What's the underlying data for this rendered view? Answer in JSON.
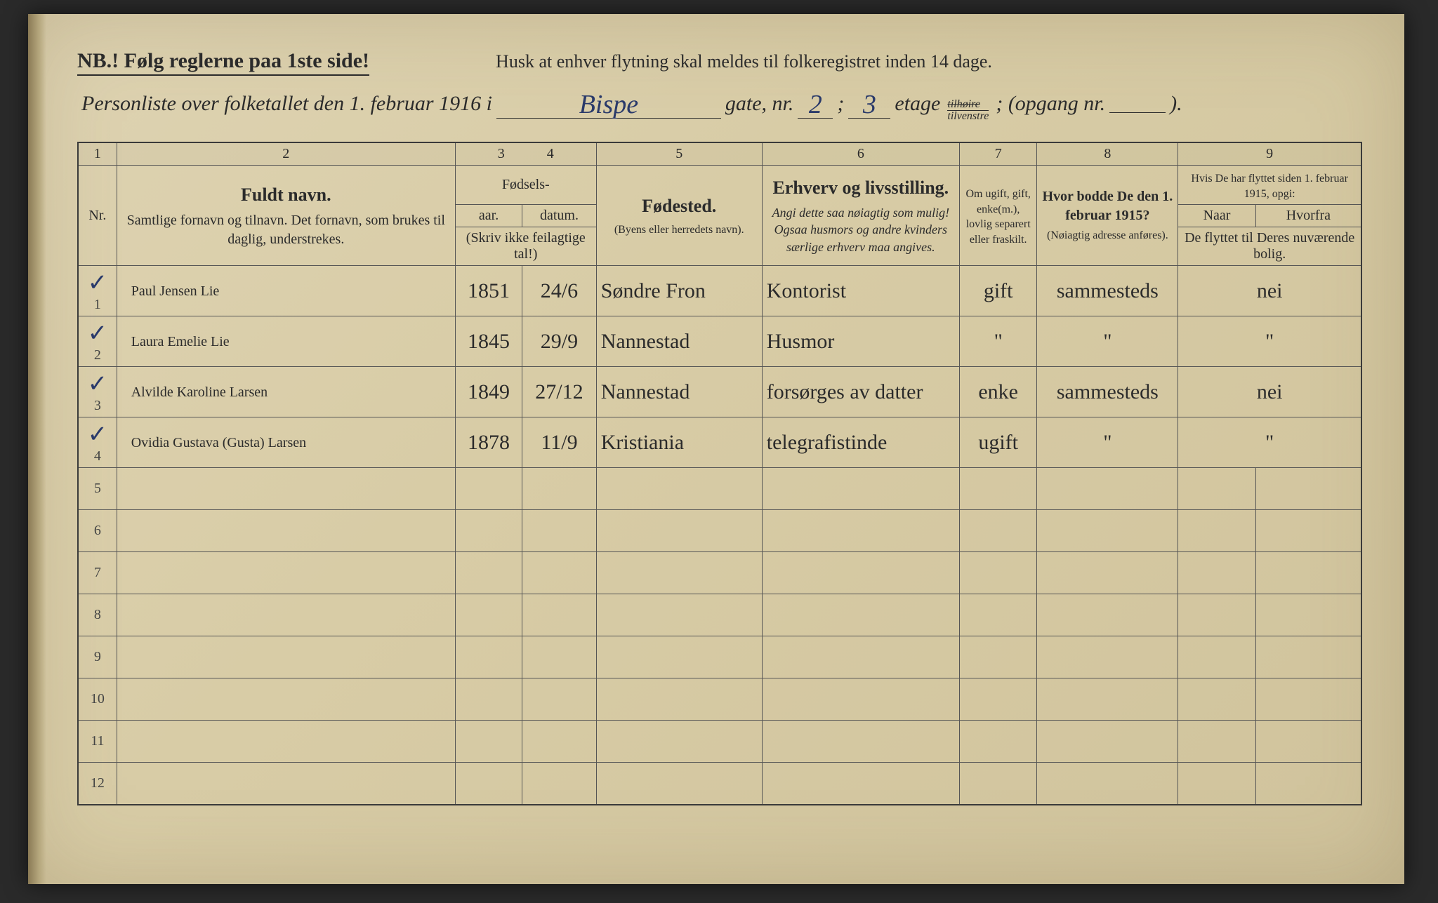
{
  "header": {
    "nb": "NB.! Følg reglerne paa 1ste side!",
    "reminder": "Husk at enhver flytning skal meldes til folkeregistret inden 14 dage.",
    "line2_prefix": "Personliste over folketallet den 1. februar 1916 i",
    "street": "Bispe",
    "gate_lbl": "gate, nr.",
    "gate_nr": "2",
    "semi": ";",
    "etage_nr": "3",
    "etage_lbl": "etage",
    "frac_top": "tilhøire",
    "frac_bot": "tilvenstre",
    "opgang_lbl": "; (opgang nr.",
    "opgang_nr": "",
    "close": ")."
  },
  "colnums": [
    "1",
    "2",
    "3",
    "4",
    "5",
    "6",
    "7",
    "8",
    "9"
  ],
  "headers": {
    "nr": "Nr.",
    "name_big": "Fuldt navn.",
    "name_sub": "Samtlige fornavn og tilnavn. Det fornavn, som brukes til daglig, understrekes.",
    "birth_top": "Fødsels-",
    "birth_yr": "aar.",
    "birth_dt": "datum.",
    "birth_note": "(Skriv ikke feilagtige tal!)",
    "place_big": "Fødested.",
    "place_sub": "(Byens eller herredets navn).",
    "occ_big": "Erhverv og livsstilling.",
    "occ_sub": "Angi dette saa nøiagtig som mulig! Ogsaa husmors og andre kvinders særlige erhverv maa angives.",
    "ms": "Om ugift, gift, enke(m.), lovlig separert eller fraskilt.",
    "prev_big": "Hvor bodde De den 1. februar 1915?",
    "prev_sub": "(Nøiagtig adresse anføres).",
    "moved_top": "Hvis De har flyttet siden 1. februar 1915, opgi:",
    "moved_a": "Naar",
    "moved_b": "Hvorfra",
    "moved_note": "De flyttet til Deres nuværende bolig."
  },
  "rows": [
    {
      "nr": "1",
      "chk": "✓",
      "name": "Paul Jensen Lie",
      "yr": "1851",
      "dt": "24/6",
      "bp": "Søndre Fron",
      "occ": "Kontorist",
      "ms": "gift",
      "prev": "sammesteds",
      "mv": "nei"
    },
    {
      "nr": "2",
      "chk": "✓",
      "name": "Laura Emelie Lie",
      "yr": "1845",
      "dt": "29/9",
      "bp": "Nannestad",
      "occ": "Husmor",
      "ms": "\"",
      "prev": "\"",
      "mv": "\""
    },
    {
      "nr": "3",
      "chk": "✓",
      "name": "Alvilde Karoline Larsen",
      "yr": "1849",
      "dt": "27/12",
      "bp": "Nannestad",
      "occ": "forsørges av datter",
      "ms": "enke",
      "prev": "sammesteds",
      "mv": "nei"
    },
    {
      "nr": "4",
      "chk": "✓",
      "name": "Ovidia Gustava (Gusta) Larsen",
      "yr": "1878",
      "dt": "11/9",
      "bp": "Kristiania",
      "occ": "telegrafistinde",
      "ms": "ugift",
      "prev": "\"",
      "mv": "\""
    }
  ],
  "empty_rows": [
    "5",
    "6",
    "7",
    "8",
    "9",
    "10",
    "11",
    "12"
  ],
  "style": {
    "paper_bg": "#d8cca6",
    "ink": "#2b2b2b",
    "hand_ink": "#29396b",
    "border": "#3a3a3a",
    "title_fontsize": 30,
    "header_fontsize": 20,
    "hand_fontsize": 34
  }
}
